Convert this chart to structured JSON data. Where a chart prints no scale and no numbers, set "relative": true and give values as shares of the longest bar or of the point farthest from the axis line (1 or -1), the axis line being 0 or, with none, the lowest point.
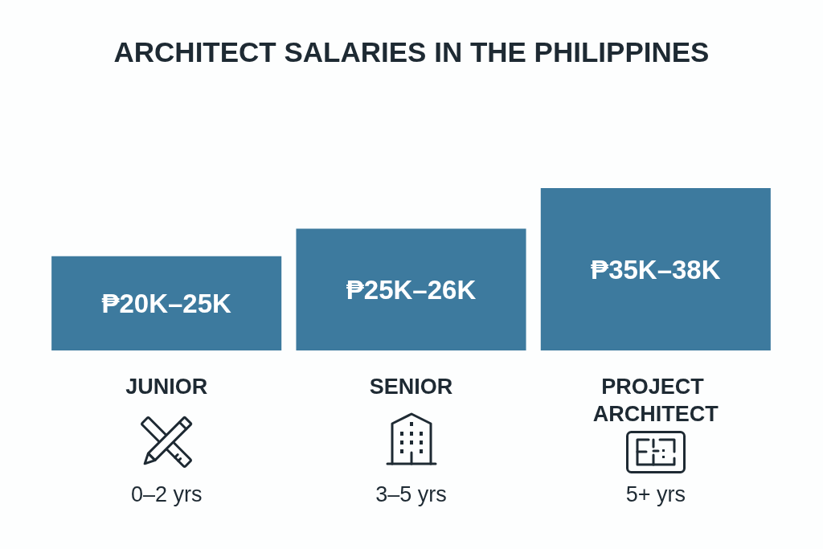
{
  "chart_data": {
    "type": "bar",
    "title": "ARCHITECT SALARIES IN THE PHILIPPINES",
    "categories": [
      "JUNIOR",
      "SENIOR",
      "PROJECT ARCHITECT"
    ],
    "values": [
      0.58,
      0.75,
      1
    ],
    "relative": true,
    "color": "#3d7a9e",
    "annotations": [
      "₱20K–25K",
      "₱25K–26K",
      "₱35K–38K",
      "0–2 yrs",
      "3–5 yrs",
      "5+ yrs"
    ]
  }
}
